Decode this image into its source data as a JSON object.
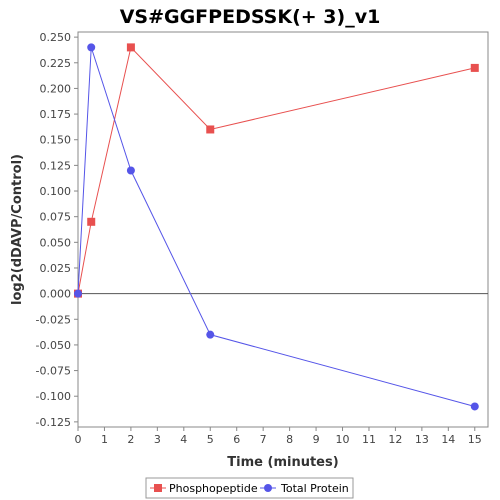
{
  "chart_data": {
    "type": "line",
    "title": "VS#GGFPEDSSK(+ 3)_v1",
    "xlabel": "Time (minutes)",
    "ylabel": "log2(dDAVP/Control)",
    "xlim": [
      0,
      15.5
    ],
    "ylim": [
      -0.13,
      0.255
    ],
    "x_ticks": [
      0,
      1,
      2,
      3,
      4,
      5,
      6,
      7,
      8,
      9,
      10,
      11,
      12,
      13,
      14,
      15
    ],
    "y_ticks": [
      -0.125,
      -0.1,
      -0.075,
      -0.05,
      -0.025,
      0.0,
      0.025,
      0.05,
      0.075,
      0.1,
      0.125,
      0.15,
      0.175,
      0.2,
      0.225,
      0.25
    ],
    "y_tick_labels": [
      "-0.125",
      "-0.100",
      "-0.075",
      "-0.050",
      "-0.025",
      "0.000",
      "0.025",
      "0.050",
      "0.075",
      "0.100",
      "0.125",
      "0.150",
      "0.175",
      "0.200",
      "0.225",
      "0.250"
    ],
    "zero_line": true,
    "grid": false,
    "legend_position": "bottom",
    "series": [
      {
        "name": "Phosphopeptide",
        "color": "#e8504f",
        "marker": "square",
        "x": [
          0,
          0.5,
          2,
          5,
          15
        ],
        "y": [
          0.0,
          0.07,
          0.24,
          0.16,
          0.22
        ]
      },
      {
        "name": "Total Protein",
        "color": "#5555e8",
        "marker": "circle",
        "x": [
          0,
          0.5,
          2,
          5,
          15
        ],
        "y": [
          0.0,
          0.24,
          0.12,
          -0.04,
          -0.11
        ]
      }
    ]
  }
}
